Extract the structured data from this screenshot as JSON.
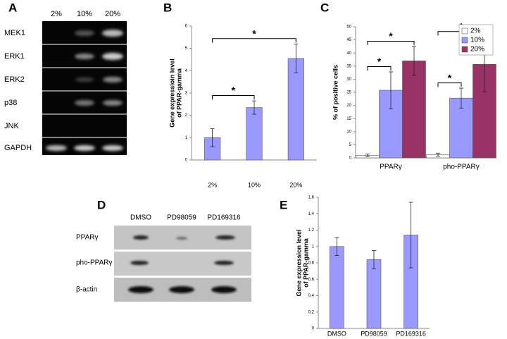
{
  "panels": {
    "A": {
      "label": "A",
      "columns": [
        "2%",
        "10%",
        "20%"
      ],
      "rows": [
        "MEK1",
        "ERK1",
        "ERK2",
        "p38",
        "JNK",
        "GAPDH"
      ]
    },
    "D": {
      "label": "D",
      "columns": [
        "DMSO",
        "PD98059",
        "PD169316"
      ],
      "rows": [
        "PPARγ",
        "pho-PPARγ",
        "β-actin"
      ]
    }
  },
  "chart_data": [
    {
      "type": "bar",
      "panel_label": "B",
      "ylabel": [
        "Gene expressioin level",
        "of PPAR-gamma"
      ],
      "categories": [
        "2%",
        "10%",
        "20%"
      ],
      "values": [
        1.0,
        2.35,
        4.55
      ],
      "errors": [
        0.4,
        0.3,
        0.65
      ],
      "color": "#9999ff",
      "ylim": [
        0,
        6
      ],
      "yticks": [
        0,
        1,
        2,
        3,
        4,
        5,
        6
      ],
      "brackets": [
        {
          "label": "*",
          "between": [
            "2%",
            "10%"
          ]
        },
        {
          "label": "*",
          "between": [
            "2%",
            "20%"
          ]
        }
      ]
    },
    {
      "type": "bar",
      "panel_label": "C",
      "ylabel": [
        "% of positive cells"
      ],
      "categories": [
        "PPARγ",
        "pho-PPARγ"
      ],
      "series": [
        {
          "name": "2%",
          "color": "#ffffff",
          "values": [
            1.0,
            1.2
          ],
          "errors": [
            0.5,
            0.6
          ]
        },
        {
          "name": "10%",
          "color": "#9999ff",
          "values": [
            25.8,
            22.8
          ],
          "errors": [
            7,
            3.8
          ]
        },
        {
          "name": "20%",
          "color": "#993366",
          "values": [
            37,
            35.7
          ],
          "errors": [
            5.5,
            10.5
          ]
        }
      ],
      "ylim": [
        0,
        50
      ],
      "yticks": [
        0,
        5,
        10,
        15,
        20,
        25,
        30,
        35,
        40,
        45,
        50
      ],
      "legend": "top-right",
      "brackets": [
        {
          "label": "*",
          "category": "PPARγ",
          "between": [
            "2%",
            "10%"
          ]
        },
        {
          "label": "*",
          "category": "PPARγ",
          "between": [
            "2%",
            "20%"
          ]
        },
        {
          "label": "*",
          "category": "pho-PPARγ",
          "between": [
            "2%",
            "10%"
          ]
        },
        {
          "label": "*",
          "category": "pho-PPARγ",
          "between": [
            "2%",
            "20%"
          ]
        }
      ]
    },
    {
      "type": "bar",
      "panel_label": "E",
      "ylabel": [
        "Gene expression level",
        "of PPAR-gamma"
      ],
      "categories": [
        "DMSO",
        "PD98059",
        "PD169316"
      ],
      "values": [
        1.0,
        0.84,
        1.14
      ],
      "errors": [
        0.11,
        0.11,
        0.4
      ],
      "color": "#9999ff",
      "ylim": [
        0,
        1.6
      ],
      "yticks": [
        0,
        {
          "value": 0.2,
          "label": "0,2"
        },
        {
          "value": 0.4,
          "label": "0,4"
        },
        {
          "value": 0.6,
          "label": "0,6"
        },
        {
          "value": 0.8,
          "label": "0,8"
        },
        1,
        {
          "value": 1.2,
          "label": "1,2"
        },
        {
          "value": 1.4,
          "label": "1,4"
        },
        {
          "value": 1.6,
          "label": "1,6"
        }
      ]
    }
  ]
}
